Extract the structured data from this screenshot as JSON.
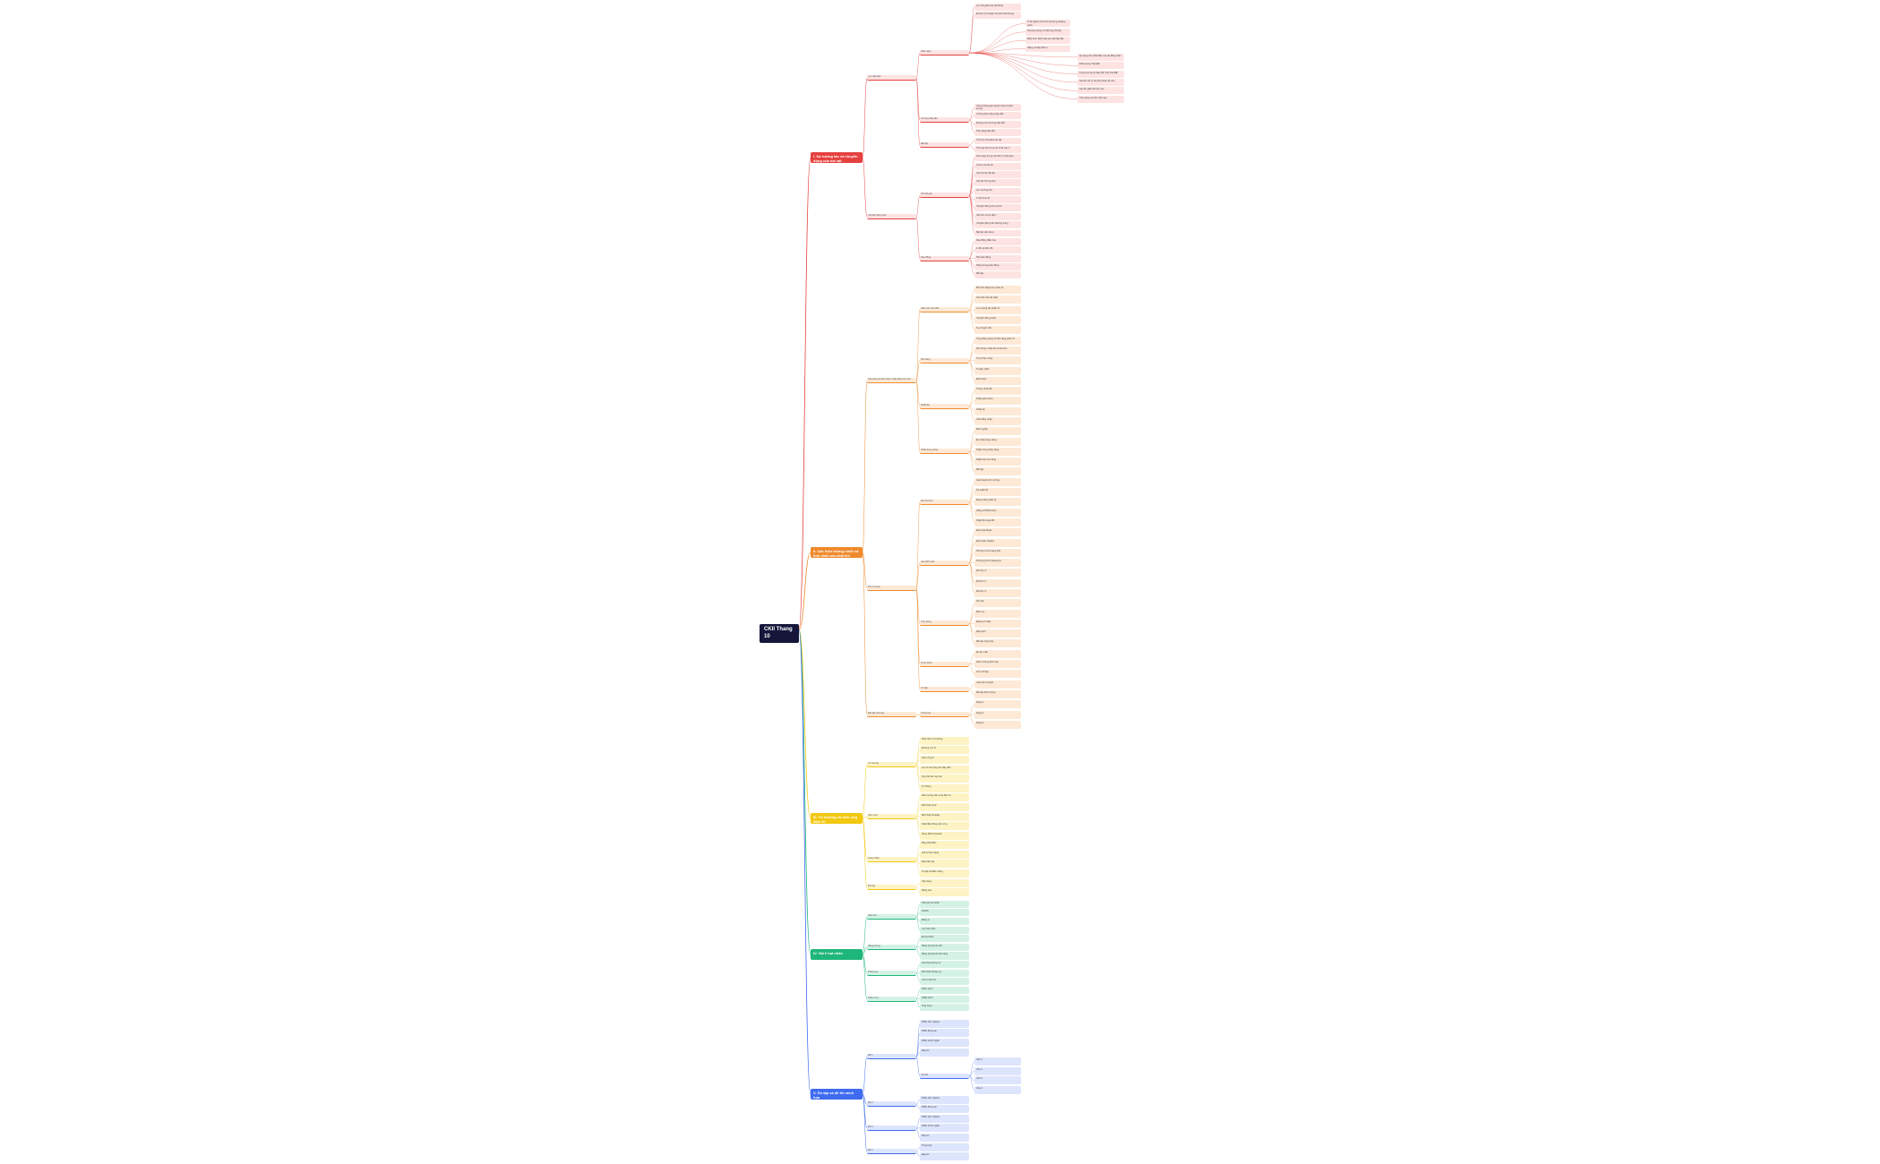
{
  "root": {
    "label": "CKII Thang 10"
  },
  "branches": [
    {
      "key": "red",
      "color": "#e5413f",
      "light": "#fde3e2",
      "title": "I. Sự tương tác và chuyển động của hai vật",
      "groups": [
        {
          "label": "Lực hấp dẫn",
          "subs": [
            {
              "label": "Khái niệm",
              "items": [
                "Lực hút giữa hai vật bất kì",
                "Độ lớn tỉ lệ thuận với tích khối lượng",
                "Tỉ lệ nghịch với bình phương khoảng cách",
                "Phương trùng với đường nối tâm",
                "Biểu thức định luật vạn vật hấp dẫn",
                "Hằng số hấp dẫn G",
                "Áp dụng cho chất điểm và vật đồng chất",
                "Khối lượng Trái Đất",
                "Trọng lực là lực hấp dẫn của Trái Đất",
                "Gia tốc rơi tự do phụ thuộc độ cao",
                "Gia tốc giảm khi lên cao",
                "Ứng dụng vệ tinh nhân tạo"
              ]
            },
            {
              "label": "Trường hấp dẫn",
              "items": [
                "Vùng không gian quanh vật có khối lượng",
                "Cường độ trường hấp dẫn",
                "Đường sức trường hấp dẫn",
                "Thế năng hấp dẫn"
              ]
            },
            {
              "label": "Bài tập",
              "items": [
                "Tính lực hút giữa hai vật",
                "Tính gia tốc rơi tự do ở độ cao h"
              ]
            }
          ]
        },
        {
          "label": "Chuyển động tròn",
          "subs": [
            {
              "label": "Tốc độ góc",
              "items": [
                "Góc quay trong một đơn vị thời gian",
                "Chu kì và tần số",
                "Liên hệ tốc độ dài",
                "Gia tốc hướng tâm",
                "Lực hướng tâm",
                "Ví dụ thực tế",
                "Chuyển động của vệ tinh",
                "Vận tốc vũ trụ cấp I",
                "Chuyển động trên đường cong",
                "Bài tập vận dụng"
              ]
            },
            {
              "label": "Dao động",
              "items": [
                "Dao động điều hòa",
                "Li độ và biên độ",
                "Pha dao động",
                "Năng lượng dao động",
                "Bài tập"
              ]
            }
          ]
        }
      ]
    },
    {
      "key": "orange",
      "color": "#ef8a2d",
      "light": "#fde9d6",
      "title": "II. Các hiện tượng nhiệt và tính chất của chất khí",
      "groups": [
        {
          "label": "Nội năng và định luật I nhiệt động lực học",
          "subs": [
            {
              "label": "Cấu trúc của chất",
              "items": [
                "Mô hình động học phân tử",
                "Các thể của vật chất",
                "Lực tương tác phân tử",
                "Chuyển động nhiệt",
                "Sự chuyển thể"
              ]
            },
            {
              "label": "Nội năng",
              "items": [
                "Tổng động năng và thế năng phân tử",
                "Phụ thuộc nhiệt độ và thể tích",
                "Thực hiện công",
                "Truyền nhiệt",
                "Định luật I"
              ]
            },
            {
              "label": "Nhiệt độ",
              "items": [
                "Thang nhiệt độ",
                "Nhiệt giai Kelvin",
                "Nhiệt kế",
                "Cân bằng nhiệt"
              ]
            },
            {
              "label": "Nhiệt dung riêng",
              "items": [
                "Định nghĩa",
                "Đo nhiệt dung riêng",
                "Nhiệt nóng chảy riêng",
                "Nhiệt hóa hơi riêng",
                "Bài tập"
              ]
            }
          ]
        },
        {
          "label": "Khí lí tưởng",
          "subs": [
            {
              "label": "Mô hình khí",
              "items": [
                "Giả thuyết khí lí tưởng",
                "Áp suất khí",
                "Động năng phân tử",
                "Hằng số Boltzmann",
                "Nhiệt độ tuyệt đối"
              ]
            },
            {
              "label": "Các định luật",
              "items": [
                "Định luật Boyle",
                "Định luật Charles",
                "Phương trình trạng thái",
                "Phương trình Clapeyron",
                "Đồ thị p-V",
                "Đồ thị V-T",
                "Đồ thị p-T"
              ]
            },
            {
              "label": "Ứng dụng",
              "items": [
                "Khí cầu",
                "Bơm xe",
                "Động cơ nhiệt",
                "Máy lạnh",
                "Bài tập tổng hợp"
              ]
            },
            {
              "label": "Thực hành",
              "items": [
                "Đo áp suất",
                "Kiểm chứng định luật",
                "Xử lí số liệu"
              ]
            },
            {
              "label": "Ôn tập",
              "items": [
                "Câu hỏi lí thuyết",
                "Bài tập định lượng"
              ]
            }
          ]
        },
        {
          "label": "Bài tập chương",
          "subs": [
            {
              "label": "Tổng hợp",
              "items": [
                "Dạng 1",
                "Dạng 2",
                "Dạng 3"
              ]
            }
          ]
        }
      ]
    },
    {
      "key": "yellow",
      "color": "#f2c811",
      "light": "#fdf3c4",
      "title": "III. Từ trường và cảm ứng điện từ",
      "groups": [
        {
          "label": "Từ trường",
          "subs": [
            {
              "label": "",
              "items": [
                "Khái niệm từ trường",
                "Đường sức từ",
                "Cảm ứng từ",
                "Lực từ tác dụng lên dây dẫn",
                "Quy tắc bàn tay trái",
                "Từ thông"
              ]
            }
          ]
        },
        {
          "label": "Cảm ứng",
          "subs": [
            {
              "label": "",
              "items": [
                "Hiện tượng cảm ứng điện từ",
                "Định luật Lenz",
                "Định luật Faraday",
                "Suất điện động cảm ứng",
                "Dòng điện Foucault"
              ]
            }
          ]
        },
        {
          "label": "Xoay chiều",
          "subs": [
            {
              "label": "",
              "items": [
                "Máy phát điện",
                "Giá trị hiệu dụng",
                "Máy biến áp",
                "Truyền tải điện năng"
              ]
            }
          ]
        },
        {
          "label": "Bài tập",
          "subs": [
            {
              "label": "",
              "items": [
                "Vận dụng",
                "Nâng cao"
              ]
            }
          ]
        }
      ]
    },
    {
      "key": "green",
      "color": "#1fb67a",
      "light": "#d3f2e5",
      "title": "IV. Vật lí hạt nhân",
      "groups": [
        {
          "label": "Cấu trúc",
          "subs": [
            {
              "label": "",
              "items": [
                "Cấu tạo hạt nhân",
                "Nuclôn",
                "Đồng vị",
                "Lực hạt nhân"
              ]
            }
          ]
        },
        {
          "label": "Năng lượng",
          "subs": [
            {
              "label": "",
              "items": [
                "Độ hụt khối",
                "Năng lượng liên kết",
                "Năng lượng liên kết riêng"
              ]
            }
          ]
        },
        {
          "label": "Phóng xạ",
          "subs": [
            {
              "label": "",
              "items": [
                "Các loại phóng xạ",
                "Định luật phóng xạ",
                "Chu kì bán rã"
              ]
            }
          ]
        },
        {
          "label": "Phản ứng",
          "subs": [
            {
              "label": "",
              "items": [
                "Phân hạch",
                "Nhiệt hạch",
                "Ứng dụng"
              ]
            }
          ]
        }
      ]
    },
    {
      "key": "blue",
      "color": "#3f6bf0",
      "light": "#dde5fd",
      "title": "V. Ôn tập và đề thi minh họa",
      "groups": [
        {
          "label": "Đề 1",
          "subs": [
            {
              "label": "",
              "items": [
                "Phần trắc nghiệm",
                "Phần đúng sai",
                "Phần trả lời ngắn",
                "Đáp án"
              ]
            },
            {
              "label": "Chi tiết",
              "items": [
                "Câu 1",
                "Câu 2",
                "Câu 3",
                "Câu 4"
              ]
            }
          ]
        },
        {
          "label": "Đề 2",
          "subs": [
            {
              "label": "",
              "items": [
                "Phần trắc nghiệm",
                "Phần đúng sai"
              ]
            }
          ]
        },
        {
          "label": "Đề 3",
          "subs": [
            {
              "label": "",
              "items": [
                "Phần trắc nghiệm",
                "Phần trả lời ngắn",
                "Đáp án"
              ]
            }
          ]
        },
        {
          "label": "Đề 4",
          "subs": [
            {
              "label": "",
              "items": [
                "Tổng hợp",
                "Đáp án"
              ]
            }
          ]
        }
      ]
    }
  ]
}
